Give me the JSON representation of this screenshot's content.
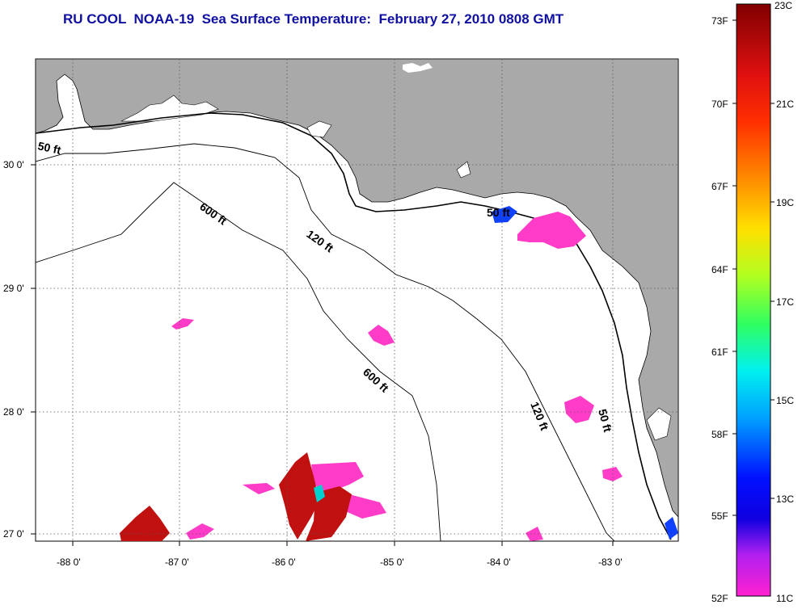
{
  "title": "RU COOL  NOAA-19  Sea Surface Temperature:  February 27, 2010 0808 GMT",
  "axes": {
    "lon_labels": [
      "-88 0'",
      "-87 0'",
      "-86 0'",
      "-85 0'",
      "-84 0'",
      "-83 0'"
    ],
    "lat_labels": [
      "30 0'",
      "29 0'",
      "28 0'",
      "27 0'"
    ]
  },
  "contours": {
    "label_50_west": "50 ft",
    "label_600_north": "600 ft",
    "label_120_north": "120 ft",
    "label_50_east": "50 ft",
    "label_600_south": "600 ft",
    "label_120_south": "120 ft",
    "label_50_southeast": "50 ft"
  },
  "colorbar": {
    "fahrenheit": [
      "73F",
      "70F",
      "67F",
      "64F",
      "61F",
      "58F",
      "55F",
      "52F"
    ],
    "celsius": [
      "23C",
      "21C",
      "19C",
      "17C",
      "15C",
      "13C",
      "11C"
    ]
  },
  "colors": {
    "land": "#a9a9a9",
    "title": "#1010a0",
    "cold_patch": "#ff3cc8",
    "warm_patch": "#c01010"
  }
}
